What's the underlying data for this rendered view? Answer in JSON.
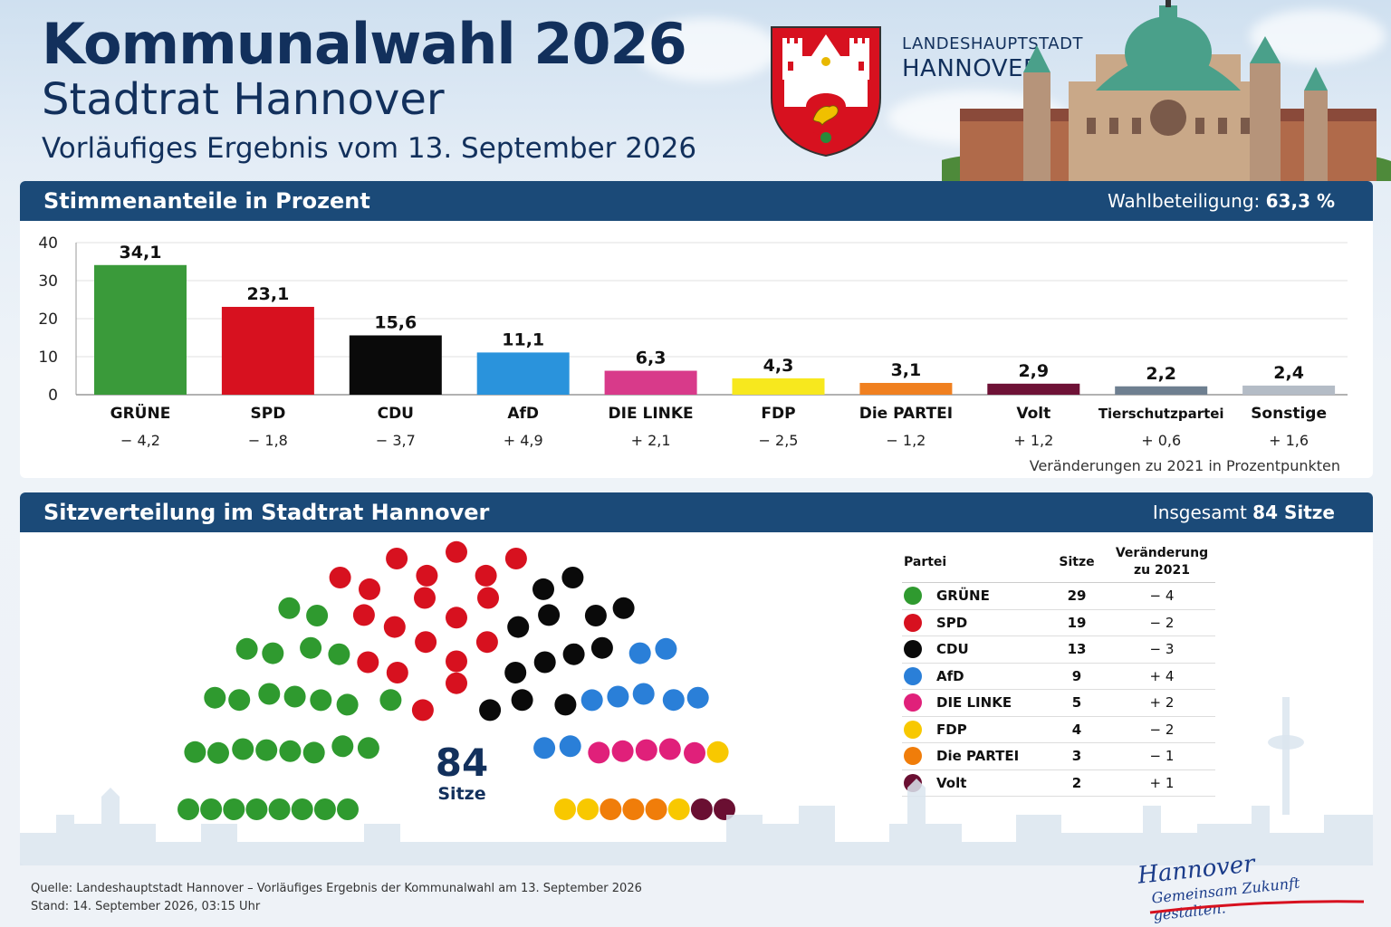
{
  "header": {
    "title": "Kommunalwahl 2026",
    "subtitle": "Stadtrat Hannover",
    "date_line": "Vorläufiges Ergebnis vom 13. September 2026",
    "city_line1": "LANDESHAUPTSTADT",
    "city_line2": "HANNOVER"
  },
  "votes_panel": {
    "title": "Stimmenanteile in Prozent",
    "turnout_label": "Wahlbeteiligung:",
    "turnout_value": "63,3 %",
    "change_note": "Veränderungen zu 2021 in Prozentpunkten"
  },
  "seats_panel": {
    "title": "Sitzverteilung im Stadtrat Hannover",
    "total_label": "Insgesamt",
    "total_value": "84 Sitze",
    "center_number": "84",
    "center_unit": "Sitze",
    "table_headers": {
      "party": "Partei",
      "seats": "Sitze",
      "change_line1": "Veränderung",
      "change_line2": "zu 2021"
    }
  },
  "chart_data": [
    {
      "type": "bar",
      "title": "Stimmenanteile in Prozent",
      "ylim": [
        0,
        40
      ],
      "yticks": [
        0,
        10,
        20,
        30,
        40
      ],
      "grid": true,
      "categories": [
        "GRÜNE",
        "SPD",
        "CDU",
        "AfD",
        "DIE LINKE",
        "FDP",
        "Die PARTEI",
        "Volt",
        "Tierschutzpartei",
        "Sonstige"
      ],
      "values": [
        34.1,
        23.1,
        15.6,
        11.1,
        6.3,
        4.3,
        3.1,
        2.9,
        2.2,
        2.4
      ],
      "value_labels": [
        "34,1",
        "23,1",
        "15,6",
        "11,1",
        "6,3",
        "4,3",
        "3,1",
        "2,9",
        "2,2",
        "2,4"
      ],
      "changes": [
        "− 4,2",
        "− 1,8",
        "− 3,7",
        "+ 4,9",
        "+ 2,1",
        "− 2,5",
        "− 1,2",
        "+ 1,2",
        "+ 0,6",
        "+ 1,6"
      ],
      "colors": [
        "#3a9a3a",
        "#d7111f",
        "#0a0a0a",
        "#2a93dc",
        "#d83a8a",
        "#f7e81e",
        "#f08020",
        "#6e1236",
        "#6e7f90",
        "#b4bcc6"
      ]
    },
    {
      "type": "parliament",
      "title": "Sitzverteilung im Stadtrat Hannover",
      "total": 84,
      "parties": [
        {
          "name": "GRÜNE",
          "seats": 29,
          "change": "− 4",
          "color": "#2f9a2f"
        },
        {
          "name": "SPD",
          "seats": 19,
          "change": "− 2",
          "color": "#d7111f"
        },
        {
          "name": "CDU",
          "seats": 13,
          "change": "− 3",
          "color": "#0a0a0a"
        },
        {
          "name": "AfD",
          "seats": 9,
          "change": "+ 4",
          "color": "#2a7fd8"
        },
        {
          "name": "DIE LINKE",
          "seats": 5,
          "change": "+ 2",
          "color": "#e0207a"
        },
        {
          "name": "FDP",
          "seats": 4,
          "change": "− 2",
          "color": "#f8c800"
        },
        {
          "name": "Die PARTEI",
          "seats": 3,
          "change": "− 1",
          "color": "#f07d0a"
        },
        {
          "name": "Volt",
          "seats": 2,
          "change": "+ 1",
          "color": "#6a0f32"
        }
      ]
    }
  ],
  "footer": {
    "source": "Quelle: Landeshauptstadt Hannover – Vorläufiges Ergebnis der Kommunalwahl am 13. September 2026",
    "stand": "Stand: 14. September 2026, 03:15 Uhr",
    "brand_line1": "Hannover",
    "brand_line2": "Gemeinsam Zukunft gestalten."
  }
}
